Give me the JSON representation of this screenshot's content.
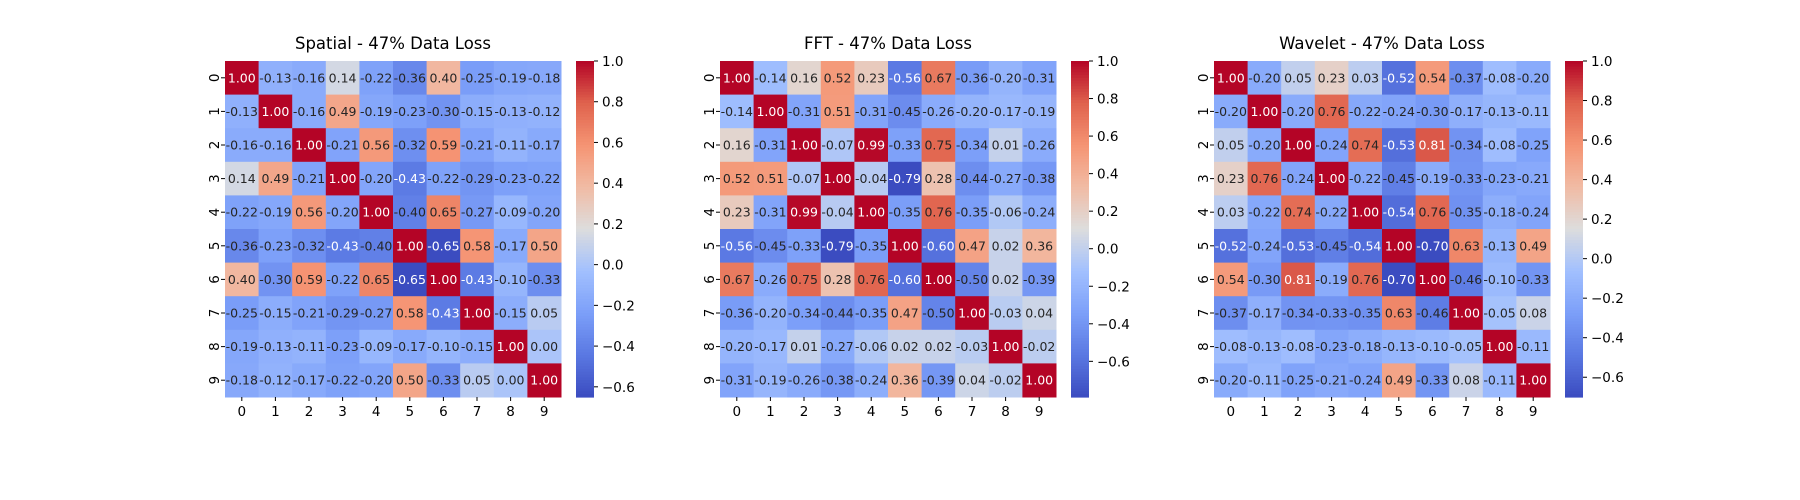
{
  "chart_data": [
    {
      "type": "heatmap",
      "title": "Spatial - 47% Data Loss",
      "x_ticks": [
        "0",
        "1",
        "2",
        "3",
        "4",
        "5",
        "6",
        "7",
        "8",
        "9"
      ],
      "y_ticks": [
        "0",
        "1",
        "2",
        "3",
        "4",
        "5",
        "6",
        "7",
        "8",
        "9"
      ],
      "colormap": "coolwarm",
      "value_range": [
        -0.65,
        1.0
      ],
      "colorbar_ticks": [
        -0.6,
        -0.4,
        -0.2,
        0.0,
        0.2,
        0.4,
        0.6,
        0.8,
        1.0
      ],
      "colorbar_labels": [
        "−0.6",
        "−0.4",
        "−0.2",
        "0.0",
        "0.2",
        "0.4",
        "0.6",
        "0.8",
        "1.0"
      ],
      "values": [
        [
          1.0,
          -0.13,
          -0.16,
          0.14,
          -0.22,
          -0.36,
          0.4,
          -0.25,
          -0.19,
          -0.18
        ],
        [
          -0.13,
          1.0,
          -0.16,
          0.49,
          -0.19,
          -0.23,
          -0.3,
          -0.15,
          -0.13,
          -0.12
        ],
        [
          -0.16,
          -0.16,
          1.0,
          -0.21,
          0.56,
          -0.32,
          0.59,
          -0.21,
          -0.11,
          -0.17
        ],
        [
          0.14,
          0.49,
          -0.21,
          1.0,
          -0.2,
          -0.43,
          -0.22,
          -0.29,
          -0.23,
          -0.22
        ],
        [
          -0.22,
          -0.19,
          0.56,
          -0.2,
          1.0,
          -0.4,
          0.65,
          -0.27,
          -0.09,
          -0.2
        ],
        [
          -0.36,
          -0.23,
          -0.32,
          -0.43,
          -0.4,
          1.0,
          -0.65,
          0.58,
          -0.17,
          0.5
        ],
        [
          0.4,
          -0.3,
          0.59,
          -0.22,
          0.65,
          -0.65,
          1.0,
          -0.43,
          -0.1,
          -0.33
        ],
        [
          -0.25,
          -0.15,
          -0.21,
          -0.29,
          -0.27,
          0.58,
          -0.43,
          1.0,
          -0.15,
          0.05
        ],
        [
          -0.19,
          -0.13,
          -0.11,
          -0.23,
          -0.09,
          -0.17,
          -0.1,
          -0.15,
          1.0,
          0.0
        ],
        [
          -0.18,
          -0.12,
          -0.17,
          -0.22,
          -0.2,
          0.5,
          -0.33,
          0.05,
          0.0,
          1.0
        ]
      ]
    },
    {
      "type": "heatmap",
      "title": "FFT - 47% Data Loss",
      "x_ticks": [
        "0",
        "1",
        "2",
        "3",
        "4",
        "5",
        "6",
        "7",
        "8",
        "9"
      ],
      "y_ticks": [
        "0",
        "1",
        "2",
        "3",
        "4",
        "5",
        "6",
        "7",
        "8",
        "9"
      ],
      "colormap": "coolwarm",
      "value_range": [
        -0.79,
        1.0
      ],
      "colorbar_ticks": [
        -0.6,
        -0.4,
        -0.2,
        0.0,
        0.2,
        0.4,
        0.6,
        0.8,
        1.0
      ],
      "colorbar_labels": [
        "−0.6",
        "−0.4",
        "−0.2",
        "0.0",
        "0.2",
        "0.4",
        "0.6",
        "0.8",
        "1.0"
      ],
      "values": [
        [
          1.0,
          -0.14,
          0.16,
          0.52,
          0.23,
          -0.56,
          0.67,
          -0.36,
          -0.2,
          -0.31
        ],
        [
          -0.14,
          1.0,
          -0.31,
          0.51,
          -0.31,
          -0.45,
          -0.26,
          -0.2,
          -0.17,
          -0.19
        ],
        [
          0.16,
          -0.31,
          1.0,
          -0.07,
          0.99,
          -0.33,
          0.75,
          -0.34,
          0.01,
          -0.26
        ],
        [
          0.52,
          0.51,
          -0.07,
          1.0,
          -0.04,
          -0.79,
          0.28,
          -0.44,
          -0.27,
          -0.38
        ],
        [
          0.23,
          -0.31,
          0.99,
          -0.04,
          1.0,
          -0.35,
          0.76,
          -0.35,
          -0.06,
          -0.24
        ],
        [
          -0.56,
          -0.45,
          -0.33,
          -0.79,
          -0.35,
          1.0,
          -0.6,
          0.47,
          0.02,
          0.36
        ],
        [
          0.67,
          -0.26,
          0.75,
          0.28,
          0.76,
          -0.6,
          1.0,
          -0.5,
          0.02,
          -0.39
        ],
        [
          -0.36,
          -0.2,
          -0.34,
          -0.44,
          -0.35,
          0.47,
          -0.5,
          1.0,
          -0.03,
          0.04
        ],
        [
          -0.2,
          -0.17,
          0.01,
          -0.27,
          -0.06,
          0.02,
          0.02,
          -0.03,
          1.0,
          -0.02
        ],
        [
          -0.31,
          -0.19,
          -0.26,
          -0.38,
          -0.24,
          0.36,
          -0.39,
          0.04,
          -0.02,
          1.0
        ]
      ]
    },
    {
      "type": "heatmap",
      "title": "Wavelet - 47% Data Loss",
      "x_ticks": [
        "0",
        "1",
        "2",
        "3",
        "4",
        "5",
        "6",
        "7",
        "8",
        "9"
      ],
      "y_ticks": [
        "0",
        "1",
        "2",
        "3",
        "4",
        "5",
        "6",
        "7",
        "8",
        "9"
      ],
      "colormap": "coolwarm",
      "value_range": [
        -0.7,
        1.0
      ],
      "colorbar_ticks": [
        -0.6,
        -0.4,
        -0.2,
        0.0,
        0.2,
        0.4,
        0.6,
        0.8,
        1.0
      ],
      "colorbar_labels": [
        "−0.6",
        "−0.4",
        "−0.2",
        "0.0",
        "0.2",
        "0.4",
        "0.6",
        "0.8",
        "1.0"
      ],
      "values": [
        [
          1.0,
          -0.2,
          0.05,
          0.23,
          0.03,
          -0.52,
          0.54,
          -0.37,
          -0.08,
          -0.2
        ],
        [
          -0.2,
          1.0,
          -0.2,
          0.76,
          -0.22,
          -0.24,
          -0.3,
          -0.17,
          -0.13,
          -0.11
        ],
        [
          0.05,
          -0.2,
          1.0,
          -0.24,
          0.74,
          -0.53,
          0.81,
          -0.34,
          -0.08,
          -0.25
        ],
        [
          0.23,
          0.76,
          -0.24,
          1.0,
          -0.22,
          -0.45,
          -0.19,
          -0.33,
          -0.23,
          -0.21
        ],
        [
          0.03,
          -0.22,
          0.74,
          -0.22,
          1.0,
          -0.54,
          0.76,
          -0.35,
          -0.18,
          -0.24
        ],
        [
          -0.52,
          -0.24,
          -0.53,
          -0.45,
          -0.54,
          1.0,
          -0.7,
          0.63,
          -0.13,
          0.49
        ],
        [
          0.54,
          -0.3,
          0.81,
          -0.19,
          0.76,
          -0.7,
          1.0,
          -0.46,
          -0.1,
          -0.33
        ],
        [
          -0.37,
          -0.17,
          -0.34,
          -0.33,
          -0.35,
          0.63,
          -0.46,
          1.0,
          -0.05,
          0.08
        ],
        [
          -0.08,
          -0.13,
          -0.08,
          -0.23,
          -0.18,
          -0.13,
          -0.1,
          -0.05,
          1.0,
          -0.11
        ],
        [
          -0.2,
          -0.11,
          -0.25,
          -0.21,
          -0.24,
          0.49,
          -0.33,
          0.08,
          -0.11,
          1.0
        ]
      ]
    }
  ]
}
